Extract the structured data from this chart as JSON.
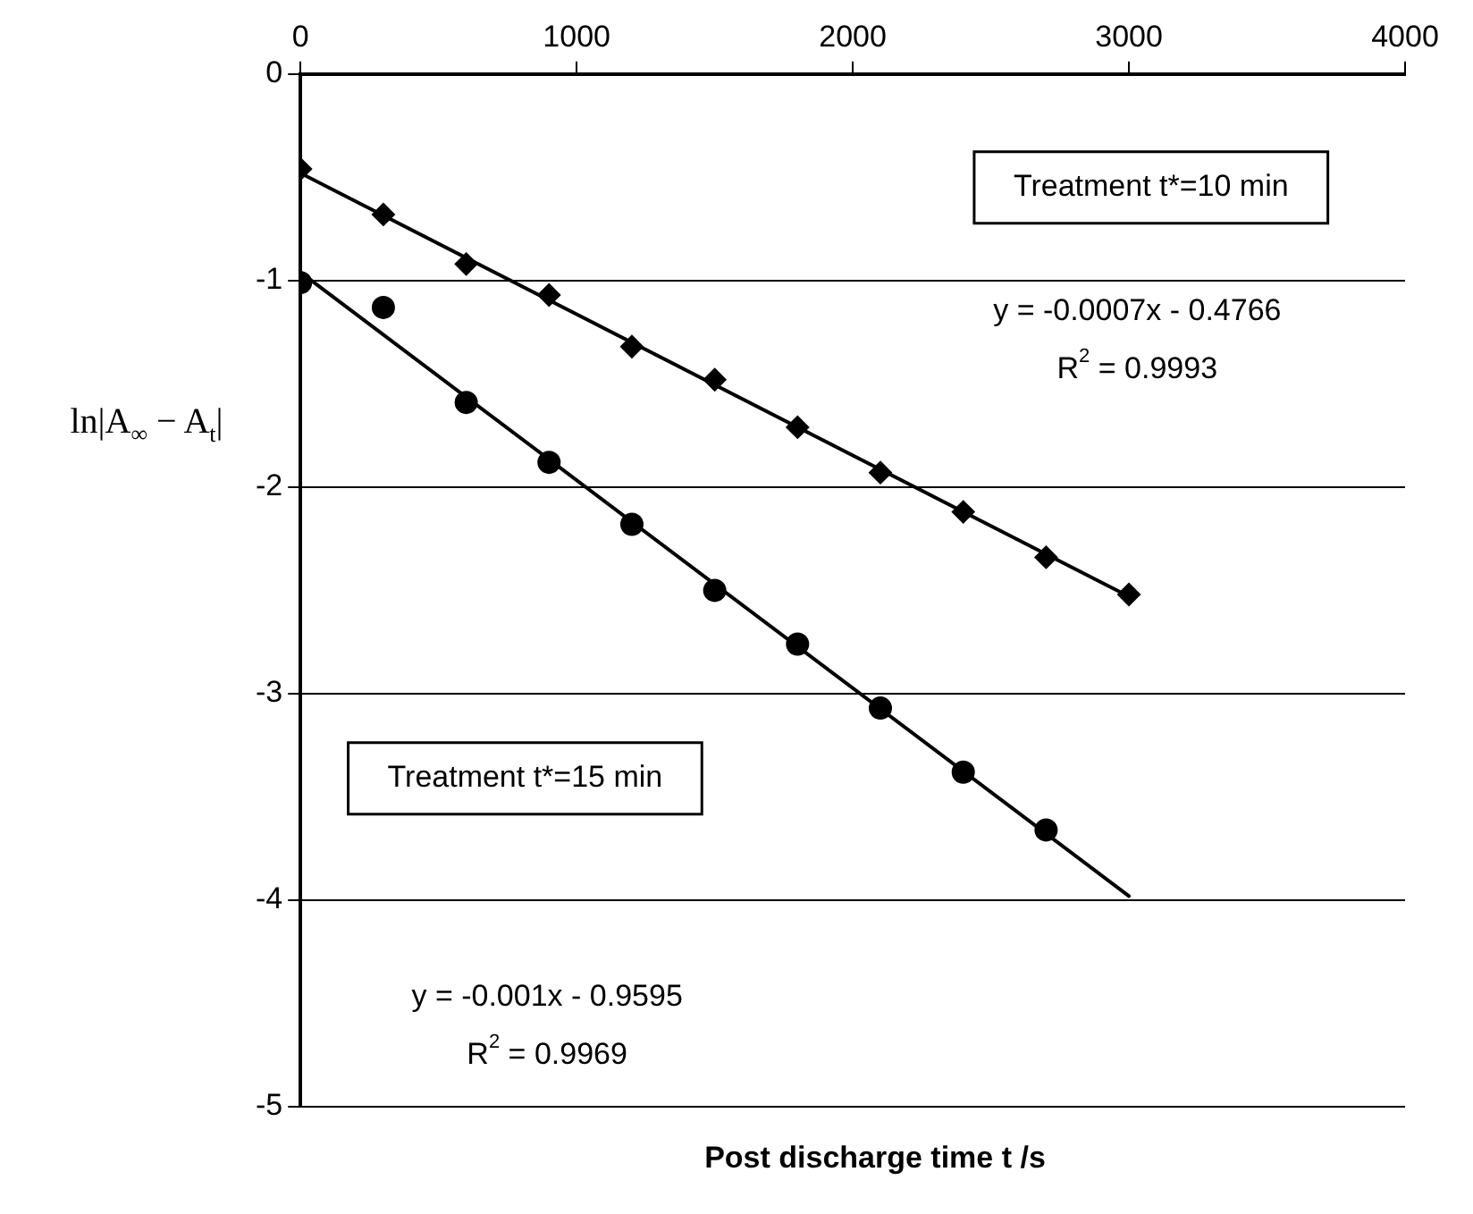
{
  "chart_data": {
    "type": "scatter",
    "xlabel": "Post discharge time t /s",
    "ylabel": "ln|A$_{∞}$ − A$_{t}$|",
    "xlim": [
      0,
      4000
    ],
    "xticks": [
      0,
      1000,
      2000,
      3000,
      4000
    ],
    "ylim": [
      -5,
      0
    ],
    "yticks": [
      -5,
      -4,
      -3,
      -2,
      -1,
      0
    ],
    "grid": "y",
    "legend": false,
    "series": [
      {
        "color": "#000000",
        "marker": "diamond",
        "x": [
          0,
          300,
          600,
          900,
          1200,
          1500,
          1800,
          2100,
          2400,
          2700,
          3000
        ],
        "values": [
          -0.46,
          -0.68,
          -0.92,
          -1.07,
          -1.32,
          -1.48,
          -1.71,
          -1.93,
          -2.12,
          -2.34,
          -2.52
        ]
      },
      {
        "color": "#000000",
        "marker": "circle",
        "x": [
          0,
          300,
          600,
          900,
          1200,
          1500,
          1800,
          2100,
          2400,
          2700
        ],
        "values": [
          -1.01,
          -1.13,
          -1.59,
          -1.88,
          -2.18,
          -2.5,
          -2.76,
          -3.07,
          -3.38,
          -3.66
        ]
      },
      {
        "type": "line",
        "color": "#000000",
        "marker": "none",
        "x": [
          0,
          3000
        ],
        "values": [
          -0.48,
          -2.53
        ]
      },
      {
        "type": "line",
        "color": "#000000",
        "marker": "none",
        "x": [
          0,
          3000
        ],
        "values": [
          -0.96,
          -3.98
        ]
      }
    ],
    "annotations": [
      "Treatment t*=10 min",
      "y = -0.0007x - 0.4766",
      "R$^{2}$ = 0.9993",
      "Treatment t*=15 min",
      "y = -0.001x - 0.9595",
      "R$^{2}$ = 0.9969"
    ]
  }
}
